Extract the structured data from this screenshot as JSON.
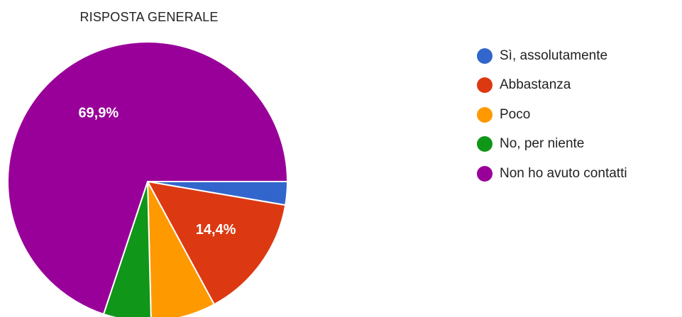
{
  "chart_data": {
    "type": "pie",
    "title": "RISPOSTA GENERALE",
    "legend_position": "right",
    "categories": [
      "Sì, assolutamente",
      "Abbastanza",
      "Poco",
      "No, per niente",
      "Non ho avuto contatti"
    ],
    "values": [
      2.7,
      14.4,
      7.5,
      5.5,
      69.9
    ],
    "data_labels": [
      "",
      "14,4%",
      "",
      "",
      "69,9%"
    ],
    "colors": [
      "#3366cc",
      "#dc3912",
      "#ff9900",
      "#109618",
      "#990099"
    ],
    "start_angle_deg": 90,
    "direction": "clockwise"
  }
}
